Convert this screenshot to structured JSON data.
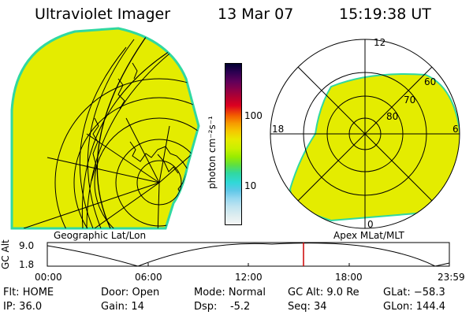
{
  "header": {
    "instrument": "Ultraviolet Imager",
    "date": "13 Mar 07",
    "time": "15:19:38 UT"
  },
  "colorbar": {
    "unit": "photon cm⁻²s⁻¹",
    "ticks": [
      "100",
      "10"
    ],
    "colors": [
      "#000030",
      "#2a0050",
      "#60005a",
      "#8a0048",
      "#b40030",
      "#dc0020",
      "#f25a00",
      "#f79a00",
      "#f5c800",
      "#e7ea00",
      "#c8f000",
      "#98ec00",
      "#5fe040",
      "#30d8a0",
      "#30d8d8",
      "#60c8e8",
      "#98d8f0",
      "#c0e4f0",
      "#e0eef0",
      "#f4f6f6"
    ]
  },
  "left_map": {
    "caption": "Geographic Lat/Lon",
    "fill_color": "#e4ec00",
    "edge_color": "#30d8a0"
  },
  "right_map": {
    "caption": "Apex MLat/MLT",
    "mlt_labels": {
      "top": "12",
      "left": "18",
      "right": "6",
      "bottom": "0"
    },
    "lat_labels": [
      "60",
      "70",
      "80"
    ],
    "fill_color": "#e4ec00"
  },
  "timeline": {
    "ylabel": "GC Alt",
    "ytick_top": "9.0",
    "ytick_bottom": "1.8",
    "xticks": [
      "00:00",
      "06:00",
      "12:00",
      "18:00",
      "23:59"
    ],
    "cursor_color": "#cc0000"
  },
  "status": {
    "flt": "Flt: HOME",
    "ip": "IP: 36.0",
    "door": "Door: Open",
    "gain": "Gain: 14",
    "mode": "Mode: Normal",
    "dsp": "Dsp:    -5.2",
    "gcalt": "GC Alt: 9.0 Re",
    "seq": "Seq: 34",
    "glat": "GLat: −58.3",
    "glon": "GLon: 144.4"
  }
}
